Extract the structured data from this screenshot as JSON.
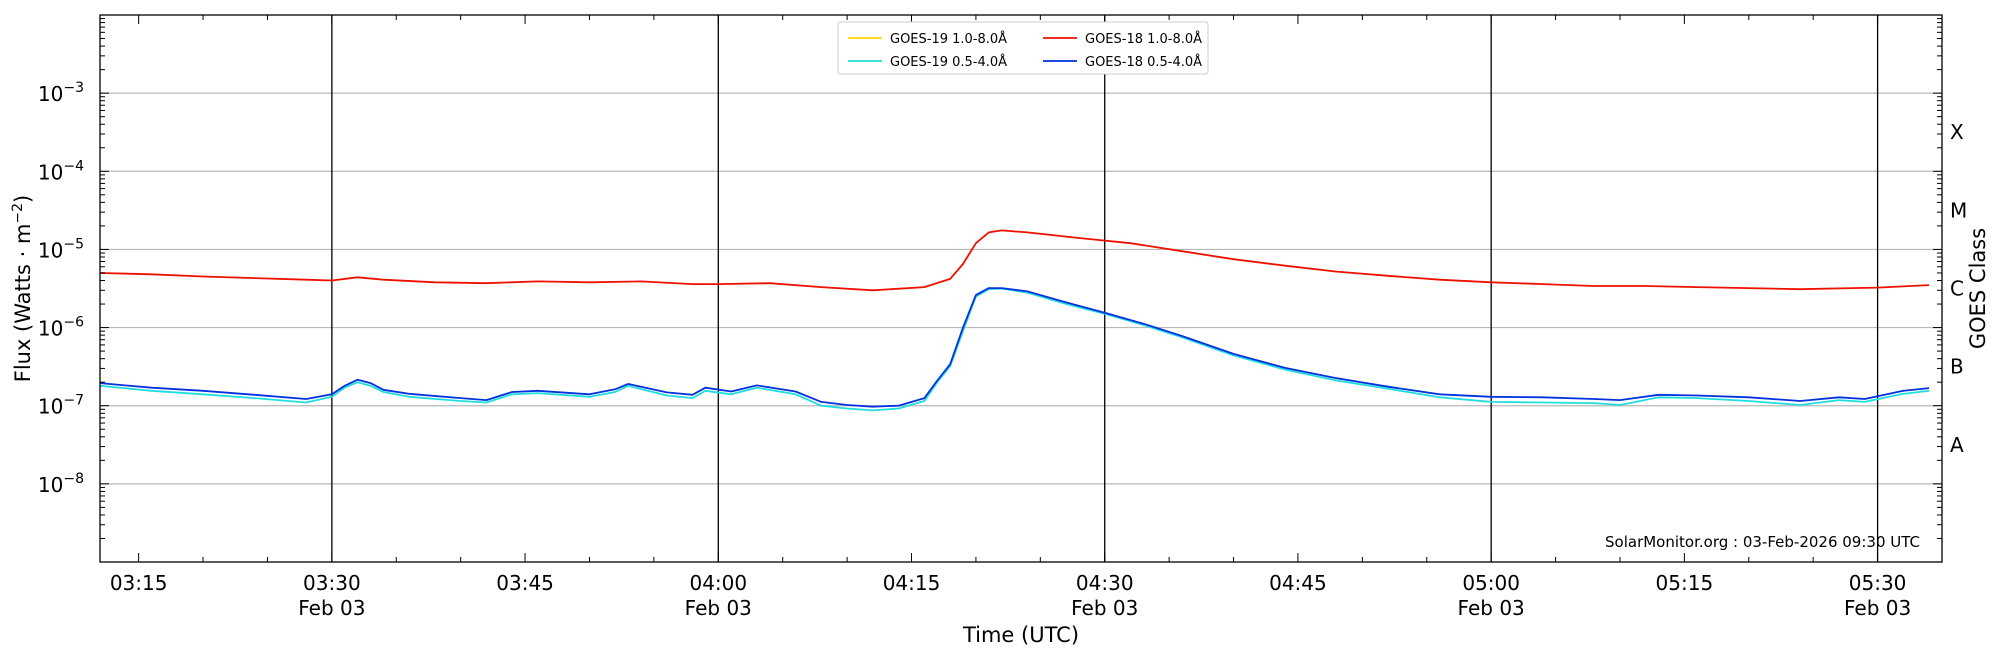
{
  "chart_data": {
    "type": "line",
    "xlabel": "Time (UTC)",
    "ylabel": "Flux (Watts · m",
    "ylabel_sup": "−2",
    "ylabel_close": ")",
    "y2label": "GOES Class",
    "yscale": "log",
    "xlim": [
      "03:12",
      "05:35"
    ],
    "ylim": [
      1e-09,
      0.01
    ],
    "y_ticks": [
      {
        "value": 1e-08,
        "base": "10",
        "exp": "−8"
      },
      {
        "value": 1e-07,
        "base": "10",
        "exp": "−7"
      },
      {
        "value": 1e-06,
        "base": "10",
        "exp": "−6"
      },
      {
        "value": 1e-05,
        "base": "10",
        "exp": "−5"
      },
      {
        "value": 0.0001,
        "base": "10",
        "exp": "−4"
      },
      {
        "value": 0.001,
        "base": "10",
        "exp": "−3"
      }
    ],
    "x_ticks": [
      {
        "time": "03:15",
        "label": "03:15",
        "date": ""
      },
      {
        "time": "03:30",
        "label": "03:30",
        "date": "Feb 03"
      },
      {
        "time": "03:45",
        "label": "03:45",
        "date": ""
      },
      {
        "time": "04:00",
        "label": "04:00",
        "date": "Feb 03"
      },
      {
        "time": "04:15",
        "label": "04:15",
        "date": ""
      },
      {
        "time": "04:30",
        "label": "04:30",
        "date": "Feb 03"
      },
      {
        "time": "04:45",
        "label": "04:45",
        "date": ""
      },
      {
        "time": "05:00",
        "label": "05:00",
        "date": "Feb 03"
      },
      {
        "time": "05:15",
        "label": "05:15",
        "date": ""
      },
      {
        "time": "05:30",
        "label": "05:30",
        "date": "Feb 03"
      }
    ],
    "vertical_lines": [
      "03:30",
      "04:00",
      "04:30",
      "05:00",
      "05:30"
    ],
    "grid": "horizontal at decades",
    "goes_classes": [
      {
        "label": "A",
        "value": 3.16e-08
      },
      {
        "label": "B",
        "value": 3.16e-07
      },
      {
        "label": "C",
        "value": 3.16e-06
      },
      {
        "label": "M",
        "value": 3.16e-05
      },
      {
        "label": "X",
        "value": 0.000316
      }
    ],
    "legend_position": "upper center",
    "credit": "SolarMonitor.org : 03-Feb-2026 09:30 UTC",
    "series": [
      {
        "name": "GOES-19 1.0-8.0Å",
        "color": "#ffd700",
        "visible_in_plot": false,
        "points": []
      },
      {
        "name": "GOES-18 1.0-8.0Å",
        "color": "#ee1100",
        "points": [
          [
            "03:12",
            5e-06
          ],
          [
            "03:16",
            4.8e-06
          ],
          [
            "03:20",
            4.5e-06
          ],
          [
            "03:24",
            4.3e-06
          ],
          [
            "03:28",
            4.1e-06
          ],
          [
            "03:30",
            4e-06
          ],
          [
            "03:32",
            4.4e-06
          ],
          [
            "03:34",
            4.1e-06
          ],
          [
            "03:38",
            3.8e-06
          ],
          [
            "03:42",
            3.7e-06
          ],
          [
            "03:46",
            3.9e-06
          ],
          [
            "03:50",
            3.8e-06
          ],
          [
            "03:54",
            3.9e-06
          ],
          [
            "03:58",
            3.6e-06
          ],
          [
            "04:00",
            3.6e-06
          ],
          [
            "04:04",
            3.7e-06
          ],
          [
            "04:08",
            3.3e-06
          ],
          [
            "04:12",
            3e-06
          ],
          [
            "04:16",
            3.3e-06
          ],
          [
            "04:18",
            4.2e-06
          ],
          [
            "04:19",
            6.5e-06
          ],
          [
            "04:20",
            1.2e-05
          ],
          [
            "04:21",
            1.65e-05
          ],
          [
            "04:22",
            1.75e-05
          ],
          [
            "04:24",
            1.65e-05
          ],
          [
            "04:28",
            1.4e-05
          ],
          [
            "04:32",
            1.2e-05
          ],
          [
            "04:36",
            9.5e-06
          ],
          [
            "04:40",
            7.5e-06
          ],
          [
            "04:44",
            6.2e-06
          ],
          [
            "04:48",
            5.2e-06
          ],
          [
            "04:52",
            4.6e-06
          ],
          [
            "04:56",
            4.1e-06
          ],
          [
            "05:00",
            3.8e-06
          ],
          [
            "05:04",
            3.6e-06
          ],
          [
            "05:08",
            3.4e-06
          ],
          [
            "05:12",
            3.4e-06
          ],
          [
            "05:16",
            3.3e-06
          ],
          [
            "05:20",
            3.2e-06
          ],
          [
            "05:24",
            3.1e-06
          ],
          [
            "05:28",
            3.2e-06
          ],
          [
            "05:30",
            3.25e-06
          ],
          [
            "05:34",
            3.5e-06
          ]
        ]
      },
      {
        "name": "GOES-19 0.5-4.0Å",
        "color": "#22dddd",
        "points": [
          [
            "03:12",
            1.8e-07
          ],
          [
            "03:16",
            1.55e-07
          ],
          [
            "03:20",
            1.4e-07
          ],
          [
            "03:24",
            1.25e-07
          ],
          [
            "03:28",
            1.1e-07
          ],
          [
            "03:30",
            1.3e-07
          ],
          [
            "03:31",
            1.7e-07
          ],
          [
            "03:32",
            2e-07
          ],
          [
            "03:33",
            1.8e-07
          ],
          [
            "03:34",
            1.5e-07
          ],
          [
            "03:36",
            1.3e-07
          ],
          [
            "03:40",
            1.15e-07
          ],
          [
            "03:42",
            1.1e-07
          ],
          [
            "03:44",
            1.4e-07
          ],
          [
            "03:46",
            1.45e-07
          ],
          [
            "03:50",
            1.3e-07
          ],
          [
            "03:52",
            1.5e-07
          ],
          [
            "03:53",
            1.8e-07
          ],
          [
            "03:56",
            1.35e-07
          ],
          [
            "03:58",
            1.25e-07
          ],
          [
            "03:59",
            1.55e-07
          ],
          [
            "04:01",
            1.4e-07
          ],
          [
            "04:03",
            1.7e-07
          ],
          [
            "04:06",
            1.4e-07
          ],
          [
            "04:08",
            1e-07
          ],
          [
            "04:10",
            9.2e-08
          ],
          [
            "04:12",
            8.7e-08
          ],
          [
            "04:14",
            9.2e-08
          ],
          [
            "04:16",
            1.15e-07
          ],
          [
            "04:17",
            2e-07
          ],
          [
            "04:18",
            3.2e-07
          ],
          [
            "04:19",
            9e-07
          ],
          [
            "04:20",
            2.5e-06
          ],
          [
            "04:21",
            3.1e-06
          ],
          [
            "04:22",
            3.15e-06
          ],
          [
            "04:24",
            2.8e-06
          ],
          [
            "04:27",
            2e-06
          ],
          [
            "04:30",
            1.5e-06
          ],
          [
            "04:33",
            1.08e-06
          ],
          [
            "04:36",
            7.5e-07
          ],
          [
            "04:40",
            4.4e-07
          ],
          [
            "04:44",
            2.9e-07
          ],
          [
            "04:48",
            2.1e-07
          ],
          [
            "04:52",
            1.65e-07
          ],
          [
            "04:56",
            1.28e-07
          ],
          [
            "05:00",
            1.12e-07
          ],
          [
            "05:04",
            1.1e-07
          ],
          [
            "05:08",
            1.08e-07
          ],
          [
            "05:10",
            1.02e-07
          ],
          [
            "05:13",
            1.28e-07
          ],
          [
            "05:16",
            1.25e-07
          ],
          [
            "05:20",
            1.15e-07
          ],
          [
            "05:24",
            1.02e-07
          ],
          [
            "05:27",
            1.18e-07
          ],
          [
            "05:29",
            1.12e-07
          ],
          [
            "05:32",
            1.42e-07
          ],
          [
            "05:34",
            1.55e-07
          ]
        ]
      },
      {
        "name": "GOES-18 0.5-4.0Å",
        "color": "#0033dd",
        "points": [
          [
            "03:12",
            1.95e-07
          ],
          [
            "03:16",
            1.7e-07
          ],
          [
            "03:20",
            1.55e-07
          ],
          [
            "03:24",
            1.38e-07
          ],
          [
            "03:28",
            1.22e-07
          ],
          [
            "03:30",
            1.4e-07
          ],
          [
            "03:31",
            1.8e-07
          ],
          [
            "03:32",
            2.15e-07
          ],
          [
            "03:33",
            1.95e-07
          ],
          [
            "03:34",
            1.6e-07
          ],
          [
            "03:36",
            1.42e-07
          ],
          [
            "03:40",
            1.25e-07
          ],
          [
            "03:42",
            1.18e-07
          ],
          [
            "03:44",
            1.5e-07
          ],
          [
            "03:46",
            1.55e-07
          ],
          [
            "03:50",
            1.4e-07
          ],
          [
            "03:52",
            1.62e-07
          ],
          [
            "03:53",
            1.9e-07
          ],
          [
            "03:56",
            1.48e-07
          ],
          [
            "03:58",
            1.38e-07
          ],
          [
            "03:59",
            1.7e-07
          ],
          [
            "04:01",
            1.52e-07
          ],
          [
            "04:03",
            1.82e-07
          ],
          [
            "04:06",
            1.52e-07
          ],
          [
            "04:08",
            1.12e-07
          ],
          [
            "04:10",
            1.02e-07
          ],
          [
            "04:12",
            9.7e-08
          ],
          [
            "04:14",
            1e-07
          ],
          [
            "04:16",
            1.25e-07
          ],
          [
            "04:17",
            2.1e-07
          ],
          [
            "04:18",
            3.4e-07
          ],
          [
            "04:19",
            1e-06
          ],
          [
            "04:20",
            2.6e-06
          ],
          [
            "04:21",
            3.2e-06
          ],
          [
            "04:22",
            3.2e-06
          ],
          [
            "04:24",
            2.9e-06
          ],
          [
            "04:27",
            2.1e-06
          ],
          [
            "04:30",
            1.55e-06
          ],
          [
            "04:33",
            1.12e-06
          ],
          [
            "04:36",
            7.8e-07
          ],
          [
            "04:40",
            4.6e-07
          ],
          [
            "04:44",
            3.05e-07
          ],
          [
            "04:48",
            2.25e-07
          ],
          [
            "04:52",
            1.75e-07
          ],
          [
            "04:56",
            1.4e-07
          ],
          [
            "05:00",
            1.3e-07
          ],
          [
            "05:04",
            1.28e-07
          ],
          [
            "05:08",
            1.22e-07
          ],
          [
            "05:10",
            1.18e-07
          ],
          [
            "05:13",
            1.38e-07
          ],
          [
            "05:16",
            1.35e-07
          ],
          [
            "05:20",
            1.28e-07
          ],
          [
            "05:24",
            1.15e-07
          ],
          [
            "05:27",
            1.28e-07
          ],
          [
            "05:29",
            1.22e-07
          ],
          [
            "05:32",
            1.55e-07
          ],
          [
            "05:34",
            1.68e-07
          ]
        ]
      }
    ]
  }
}
